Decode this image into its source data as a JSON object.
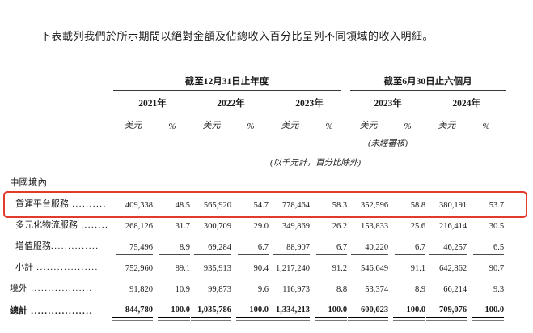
{
  "intro": "下表載列我們於所示期間以絕對金額及佔總收入百分比呈列不同領域的收入明細。",
  "colors": {
    "highlight_box": "#e43a2c"
  },
  "table": {
    "groups": [
      {
        "label": "截至12月31日止年度",
        "years": [
          "2021年",
          "2022年",
          "2023年"
        ]
      },
      {
        "label": "截至6月30日止六個月",
        "years": [
          "2023年",
          "2024年"
        ]
      }
    ],
    "units": {
      "usd": "美元",
      "pct": "%"
    },
    "note_unaudited": "(未經審核)",
    "note_unit": "(以千元計，百分比除外)",
    "section_label": "中國境內",
    "rows": [
      {
        "label": "貨運平台服務",
        "dots": " ..........",
        "highlighted": true,
        "values": [
          "409,338",
          "48.5",
          "565,920",
          "54.7",
          "778,464",
          "58.3",
          "352,596",
          "58.8",
          "380,191",
          "53.7"
        ]
      },
      {
        "label": "多元化物流服務",
        "dots": " ........",
        "values": [
          "268,126",
          "31.7",
          "300,709",
          "29.0",
          "349,869",
          "26.2",
          "153,833",
          "25.6",
          "216,414",
          "30.5"
        ]
      },
      {
        "label": "增值服務",
        "dots": "..............",
        "values": [
          "75,496",
          "8.9",
          "69,284",
          "6.7",
          "88,907",
          "6.7",
          "40,220",
          "6.7",
          "46,257",
          "6.5"
        ]
      },
      {
        "label": "小計",
        "dots": " ..................",
        "values": [
          "752,960",
          "89.1",
          "935,913",
          "90.4",
          "1,217,240",
          "91.2",
          "546,649",
          "91.1",
          "642,862",
          "90.7"
        ]
      },
      {
        "label": "境外",
        "dots": " ..................",
        "values": [
          "91,820",
          "10.9",
          "99,873",
          "9.6",
          "116,973",
          "8.8",
          "53,374",
          "8.9",
          "66,214",
          "9.3"
        ]
      },
      {
        "label": "總計",
        "dots": " ..................",
        "values": [
          "844,780",
          "100.0",
          "1,035,786",
          "100.0",
          "1,334,213",
          "100.0",
          "600,023",
          "100.0",
          "709,076",
          "100.0"
        ]
      }
    ]
  }
}
